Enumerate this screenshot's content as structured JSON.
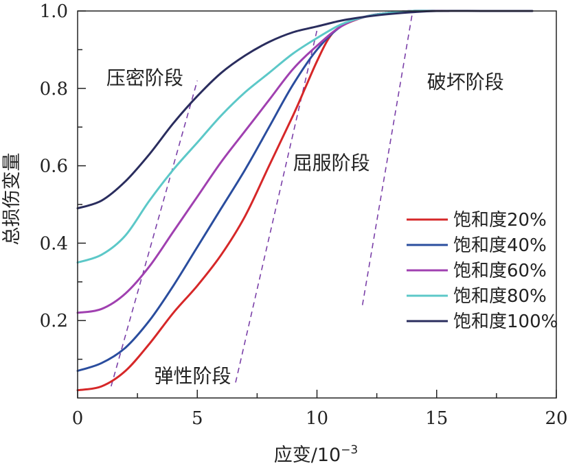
{
  "chart_data": {
    "type": "line",
    "xlabel": "应变/10",
    "xlabel_exp": "−3",
    "ylabel": "总损伤变量",
    "xlim": [
      0,
      20
    ],
    "ylim": [
      0,
      1.0
    ],
    "x_ticks": [
      "0",
      "5",
      "10",
      "15",
      "20"
    ],
    "y_ticks": [
      "0.2",
      "0.4",
      "0.6",
      "0.8",
      "1.0"
    ],
    "legend_position": "right",
    "series": [
      {
        "name": "饱和度20%",
        "color": "#d62728",
        "points": [
          [
            0,
            0.02
          ],
          [
            1,
            0.03
          ],
          [
            2,
            0.07
          ],
          [
            3,
            0.14
          ],
          [
            4,
            0.22
          ],
          [
            5,
            0.29
          ],
          [
            6,
            0.37
          ],
          [
            7,
            0.47
          ],
          [
            8,
            0.6
          ],
          [
            9,
            0.73
          ],
          [
            9.5,
            0.8
          ],
          [
            10,
            0.87
          ],
          [
            10.5,
            0.93
          ],
          [
            11,
            0.96
          ],
          [
            12,
            0.985
          ],
          [
            13,
            0.995
          ],
          [
            14,
            1.0
          ],
          [
            15,
            1.0
          ]
        ]
      },
      {
        "name": "饱和度40%",
        "color": "#2a4d9e",
        "points": [
          [
            0,
            0.07
          ],
          [
            1,
            0.09
          ],
          [
            2,
            0.13
          ],
          [
            3,
            0.2
          ],
          [
            4,
            0.29
          ],
          [
            5,
            0.39
          ],
          [
            6,
            0.49
          ],
          [
            7,
            0.59
          ],
          [
            8,
            0.7
          ],
          [
            9,
            0.81
          ],
          [
            10,
            0.9
          ],
          [
            11,
            0.96
          ],
          [
            12,
            0.985
          ],
          [
            13,
            0.995
          ],
          [
            14,
            1.0
          ],
          [
            15,
            1.0
          ]
        ]
      },
      {
        "name": "饱和度60%",
        "color": "#a040b0",
        "points": [
          [
            0,
            0.22
          ],
          [
            1,
            0.23
          ],
          [
            2,
            0.27
          ],
          [
            3,
            0.34
          ],
          [
            4,
            0.43
          ],
          [
            5,
            0.52
          ],
          [
            6,
            0.61
          ],
          [
            7,
            0.69
          ],
          [
            8,
            0.77
          ],
          [
            9,
            0.85
          ],
          [
            10,
            0.91
          ],
          [
            11,
            0.96
          ],
          [
            12,
            0.985
          ],
          [
            13,
            0.995
          ],
          [
            14,
            1.0
          ],
          [
            15.5,
            1.0
          ]
        ]
      },
      {
        "name": "饱和度80%",
        "color": "#5cc8c8",
        "points": [
          [
            0,
            0.35
          ],
          [
            1,
            0.37
          ],
          [
            2,
            0.42
          ],
          [
            3,
            0.51
          ],
          [
            4,
            0.59
          ],
          [
            5,
            0.66
          ],
          [
            6,
            0.73
          ],
          [
            7,
            0.79
          ],
          [
            8,
            0.84
          ],
          [
            9,
            0.89
          ],
          [
            10,
            0.93
          ],
          [
            11,
            0.965
          ],
          [
            12,
            0.985
          ],
          [
            13,
            0.995
          ],
          [
            14,
            1.0
          ],
          [
            15,
            1.0
          ]
        ]
      },
      {
        "name": "饱和度100%",
        "color": "#2a2d5e",
        "points": [
          [
            0,
            0.49
          ],
          [
            1,
            0.51
          ],
          [
            2,
            0.56
          ],
          [
            3,
            0.63
          ],
          [
            4,
            0.71
          ],
          [
            5,
            0.78
          ],
          [
            6,
            0.84
          ],
          [
            7,
            0.885
          ],
          [
            8,
            0.92
          ],
          [
            9,
            0.945
          ],
          [
            10,
            0.96
          ],
          [
            11,
            0.975
          ],
          [
            12,
            0.985
          ],
          [
            13,
            0.992
          ],
          [
            14,
            0.997
          ],
          [
            15,
            1.0
          ],
          [
            17,
            1.0
          ],
          [
            19,
            1.0
          ]
        ]
      }
    ],
    "stage_lines": [
      {
        "points": [
          [
            1.4,
            0.03
          ],
          [
            5.0,
            0.82
          ]
        ]
      },
      {
        "points": [
          [
            6.6,
            0.04
          ],
          [
            10.0,
            0.95
          ]
        ]
      },
      {
        "points": [
          [
            11.9,
            0.24
          ],
          [
            14.0,
            1.0
          ]
        ]
      }
    ],
    "annotations": [
      {
        "text": "压密阶段",
        "x": 1.2,
        "y": 0.81
      },
      {
        "text": "弹性阶段",
        "x": 3.2,
        "y": 0.04
      },
      {
        "text": "屈服阶段",
        "x": 9.0,
        "y": 0.59
      },
      {
        "text": "破坏阶段",
        "x": 14.6,
        "y": 0.8
      }
    ]
  }
}
